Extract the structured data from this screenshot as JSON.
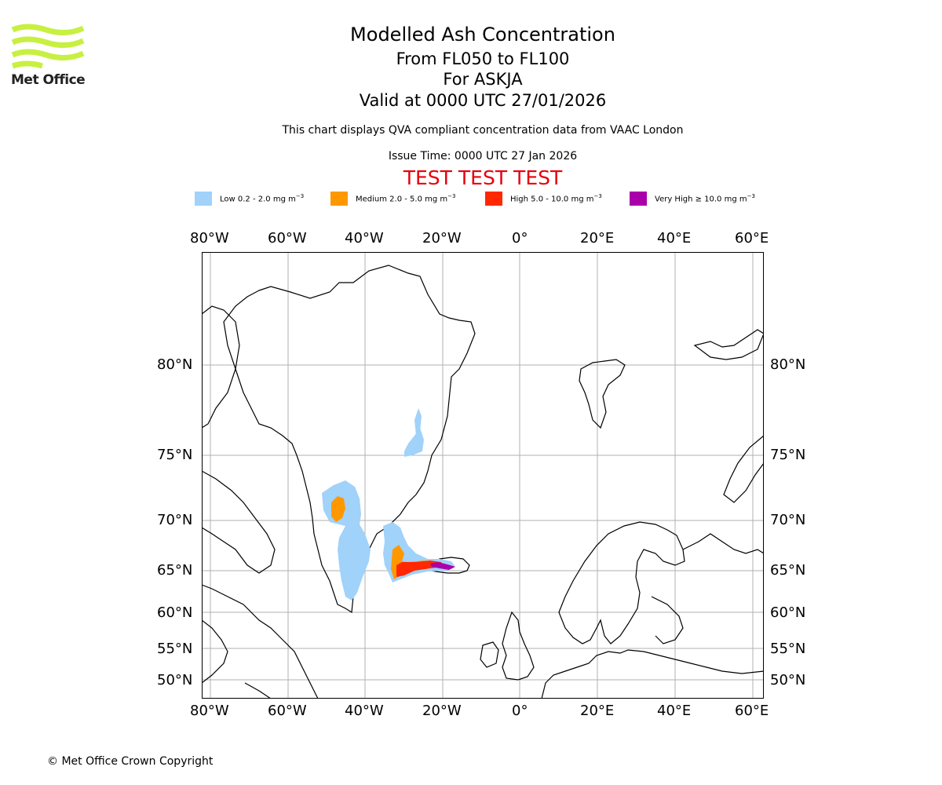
{
  "logo": {
    "name": "Met Office",
    "color": "#c8f040"
  },
  "header": {
    "title": "Modelled Ash Concentration",
    "level": "From FL050 to FL100",
    "volcano": "For ASKJA",
    "valid": "Valid at 0000 UTC 27/01/2026",
    "subtitle": "This chart displays QVA compliant concentration data from VAAC London",
    "issue": "Issue Time: 0000 UTC 27 Jan 2026",
    "test_banner": "TEST TEST TEST"
  },
  "legend": [
    {
      "label": "Low 0.2 - 2.0 mg m",
      "unit_exp": "−3",
      "color": "#a0d2fa"
    },
    {
      "label": "Medium 2.0 - 5.0 mg m",
      "unit_exp": "−3",
      "color": "#ff9800"
    },
    {
      "label": "High 5.0 - 10.0 mg m",
      "unit_exp": "−3",
      "color": "#ff2800"
    },
    {
      "label": "Very High  ≥  10.0 mg m",
      "unit_exp": "−3",
      "color": "#aa00aa"
    }
  ],
  "map": {
    "lon_labels": [
      "80°W",
      "60°W",
      "40°W",
      "20°W",
      "0°",
      "20°E",
      "40°E",
      "60°E"
    ],
    "lat_labels": [
      "80°N",
      "75°N",
      "70°N",
      "65°N",
      "60°N",
      "55°N",
      "50°N"
    ],
    "colors": {
      "grid": "#b0b0b0",
      "coast": "#000000"
    }
  },
  "footer": {
    "copyright": "© Met Office Crown Copyright"
  }
}
